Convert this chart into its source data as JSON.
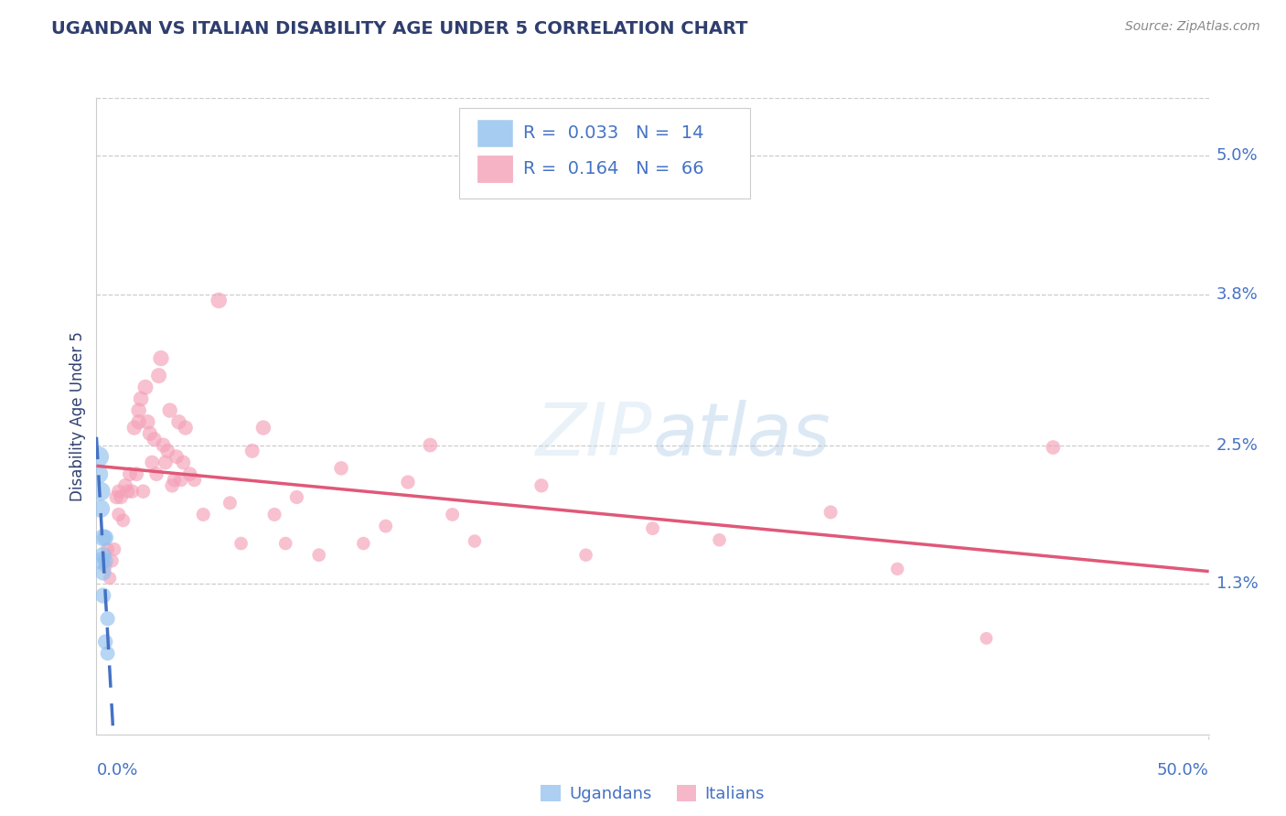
{
  "title": "UGANDAN VS ITALIAN DISABILITY AGE UNDER 5 CORRELATION CHART",
  "source": "Source: ZipAtlas.com",
  "ylabel": "Disability Age Under 5",
  "xlim": [
    0.0,
    0.5
  ],
  "ylim": [
    0.0,
    0.055
  ],
  "yticks": [
    0.013,
    0.025,
    0.038,
    0.05
  ],
  "ytick_labels": [
    "1.3%",
    "2.5%",
    "3.8%",
    "5.0%"
  ],
  "ugandan_color": "#90C0EE",
  "italian_color": "#F4A0B8",
  "ugandan_line_color": "#4472C4",
  "italian_line_color": "#E05878",
  "background_color": "#FFFFFF",
  "grid_color": "#CCCCCC",
  "title_color": "#2F3E6E",
  "source_color": "#888888",
  "label_color": "#4472C4",
  "legend_r_ugandan": "0.033",
  "legend_n_ugandan": "14",
  "legend_r_italian": "0.164",
  "legend_n_italian": "66",
  "ugandans_x": [
    0.001,
    0.001,
    0.002,
    0.002,
    0.002,
    0.003,
    0.003,
    0.003,
    0.003,
    0.004,
    0.004,
    0.004,
    0.005,
    0.005
  ],
  "ugandans_y": [
    0.024,
    0.0225,
    0.021,
    0.0195,
    0.015,
    0.017,
    0.0155,
    0.014,
    0.012,
    0.017,
    0.015,
    0.008,
    0.01,
    0.007
  ],
  "ugandans_size": [
    260,
    220,
    220,
    200,
    190,
    190,
    170,
    165,
    155,
    165,
    150,
    140,
    135,
    130
  ],
  "italians_x": [
    0.004,
    0.005,
    0.006,
    0.007,
    0.008,
    0.009,
    0.01,
    0.01,
    0.011,
    0.012,
    0.013,
    0.014,
    0.015,
    0.016,
    0.017,
    0.018,
    0.019,
    0.019,
    0.02,
    0.021,
    0.022,
    0.023,
    0.024,
    0.025,
    0.026,
    0.027,
    0.028,
    0.029,
    0.03,
    0.031,
    0.032,
    0.033,
    0.034,
    0.035,
    0.036,
    0.037,
    0.038,
    0.039,
    0.04,
    0.042,
    0.044,
    0.048,
    0.055,
    0.06,
    0.065,
    0.07,
    0.075,
    0.08,
    0.085,
    0.09,
    0.1,
    0.11,
    0.12,
    0.13,
    0.14,
    0.15,
    0.16,
    0.17,
    0.2,
    0.22,
    0.25,
    0.28,
    0.33,
    0.36,
    0.4,
    0.43
  ],
  "italians_y": [
    0.0145,
    0.016,
    0.0135,
    0.015,
    0.016,
    0.0205,
    0.019,
    0.021,
    0.0205,
    0.0185,
    0.0215,
    0.021,
    0.0225,
    0.021,
    0.0265,
    0.0225,
    0.027,
    0.028,
    0.029,
    0.021,
    0.03,
    0.027,
    0.026,
    0.0235,
    0.0255,
    0.0225,
    0.031,
    0.0325,
    0.025,
    0.0235,
    0.0245,
    0.028,
    0.0215,
    0.022,
    0.024,
    0.027,
    0.022,
    0.0235,
    0.0265,
    0.0225,
    0.022,
    0.019,
    0.0375,
    0.02,
    0.0165,
    0.0245,
    0.0265,
    0.019,
    0.0165,
    0.0205,
    0.0155,
    0.023,
    0.0165,
    0.018,
    0.0218,
    0.025,
    0.019,
    0.0167,
    0.0215,
    0.0155,
    0.0178,
    0.0168,
    0.0192,
    0.0143,
    0.0083,
    0.0248
  ],
  "italians_size": [
    110,
    115,
    108,
    112,
    115,
    128,
    120,
    125,
    125,
    118,
    130,
    125,
    130,
    125,
    140,
    130,
    140,
    142,
    145,
    125,
    150,
    140,
    138,
    130,
    135,
    128,
    150,
    155,
    135,
    130,
    133,
    140,
    125,
    128,
    130,
    140,
    125,
    130,
    138,
    128,
    125,
    118,
    160,
    118,
    112,
    132,
    140,
    118,
    112,
    120,
    112,
    125,
    110,
    115,
    122,
    130,
    115,
    110,
    122,
    110,
    115,
    110,
    118,
    108,
    100,
    128
  ]
}
